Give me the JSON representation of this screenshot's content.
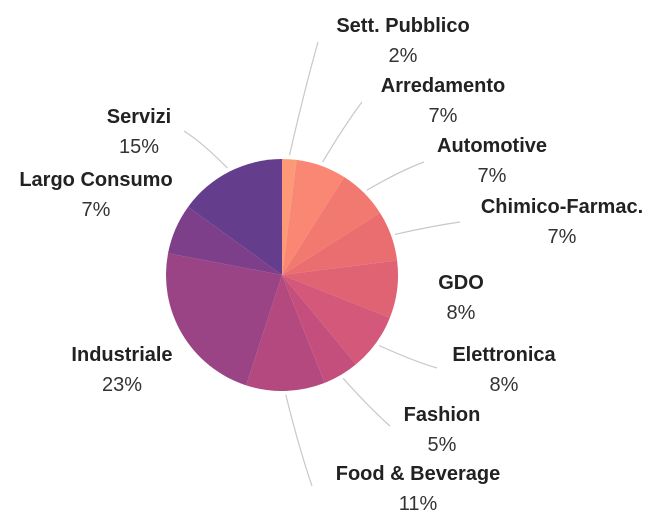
{
  "chart_data": {
    "type": "pie",
    "title": "",
    "slices": [
      {
        "label": "Sett. Pubblico",
        "value_label": "2%",
        "value": 2,
        "color": "#fc9a78"
      },
      {
        "label": "Arredamento",
        "value_label": "7%",
        "value": 7,
        "color": "#fa8774"
      },
      {
        "label": "Automotive",
        "value_label": "7%",
        "value": 7,
        "color": "#f2796f"
      },
      {
        "label": "Chimico-Farmac.",
        "value_label": "7%",
        "value": 7,
        "color": "#ea6d70"
      },
      {
        "label": "GDO",
        "value_label": "8%",
        "value": 8,
        "color": "#e06374"
      },
      {
        "label": "Elettronica",
        "value_label": "8%",
        "value": 8,
        "color": "#d3587a"
      },
      {
        "label": "Fashion",
        "value_label": "5%",
        "value": 5,
        "color": "#c44f7c"
      },
      {
        "label": "Food & Beverage",
        "value_label": "11%",
        "value": 11,
        "color": "#b4497f"
      },
      {
        "label": "Industriale",
        "value_label": "23%",
        "value": 23,
        "color": "#9a4486"
      },
      {
        "label": "Largo Consumo",
        "value_label": "7%",
        "value": 7,
        "color": "#7e3f8a"
      },
      {
        "label": "Servizi",
        "value_label": "15%",
        "value": 15,
        "color": "#643d8c"
      }
    ]
  }
}
